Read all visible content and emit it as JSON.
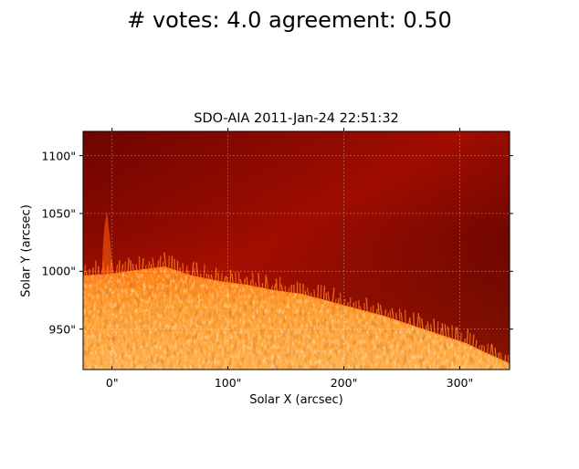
{
  "figure": {
    "suptitle": "# votes: 4.0 agreement: 0.50"
  },
  "image_panel": {
    "title": "SDO-AIA   2011-Jan-24 22:51:32",
    "xlabel": "Solar X (arcsec)",
    "ylabel": "Solar Y (arcsec)",
    "x_ticks": [
      {
        "value": 0,
        "label": "0\""
      },
      {
        "value": 100,
        "label": "100\""
      },
      {
        "value": 200,
        "label": "200\""
      },
      {
        "value": 300,
        "label": "300\""
      }
    ],
    "y_ticks": [
      {
        "value": 950,
        "label": "950\""
      },
      {
        "value": 1000,
        "label": "1000\""
      },
      {
        "value": 1050,
        "label": "1050\""
      },
      {
        "value": 1100,
        "label": "1100\""
      }
    ],
    "x_range": [
      -25,
      343
    ],
    "y_range": [
      915,
      1121
    ],
    "grid": true,
    "colormap": [
      "#3d0000",
      "#8a0800",
      "#c41a00",
      "#ff6a00",
      "#ffc060",
      "#fff2dc"
    ],
    "subject": "solar limb with spicules and prominence near 0\""
  }
}
